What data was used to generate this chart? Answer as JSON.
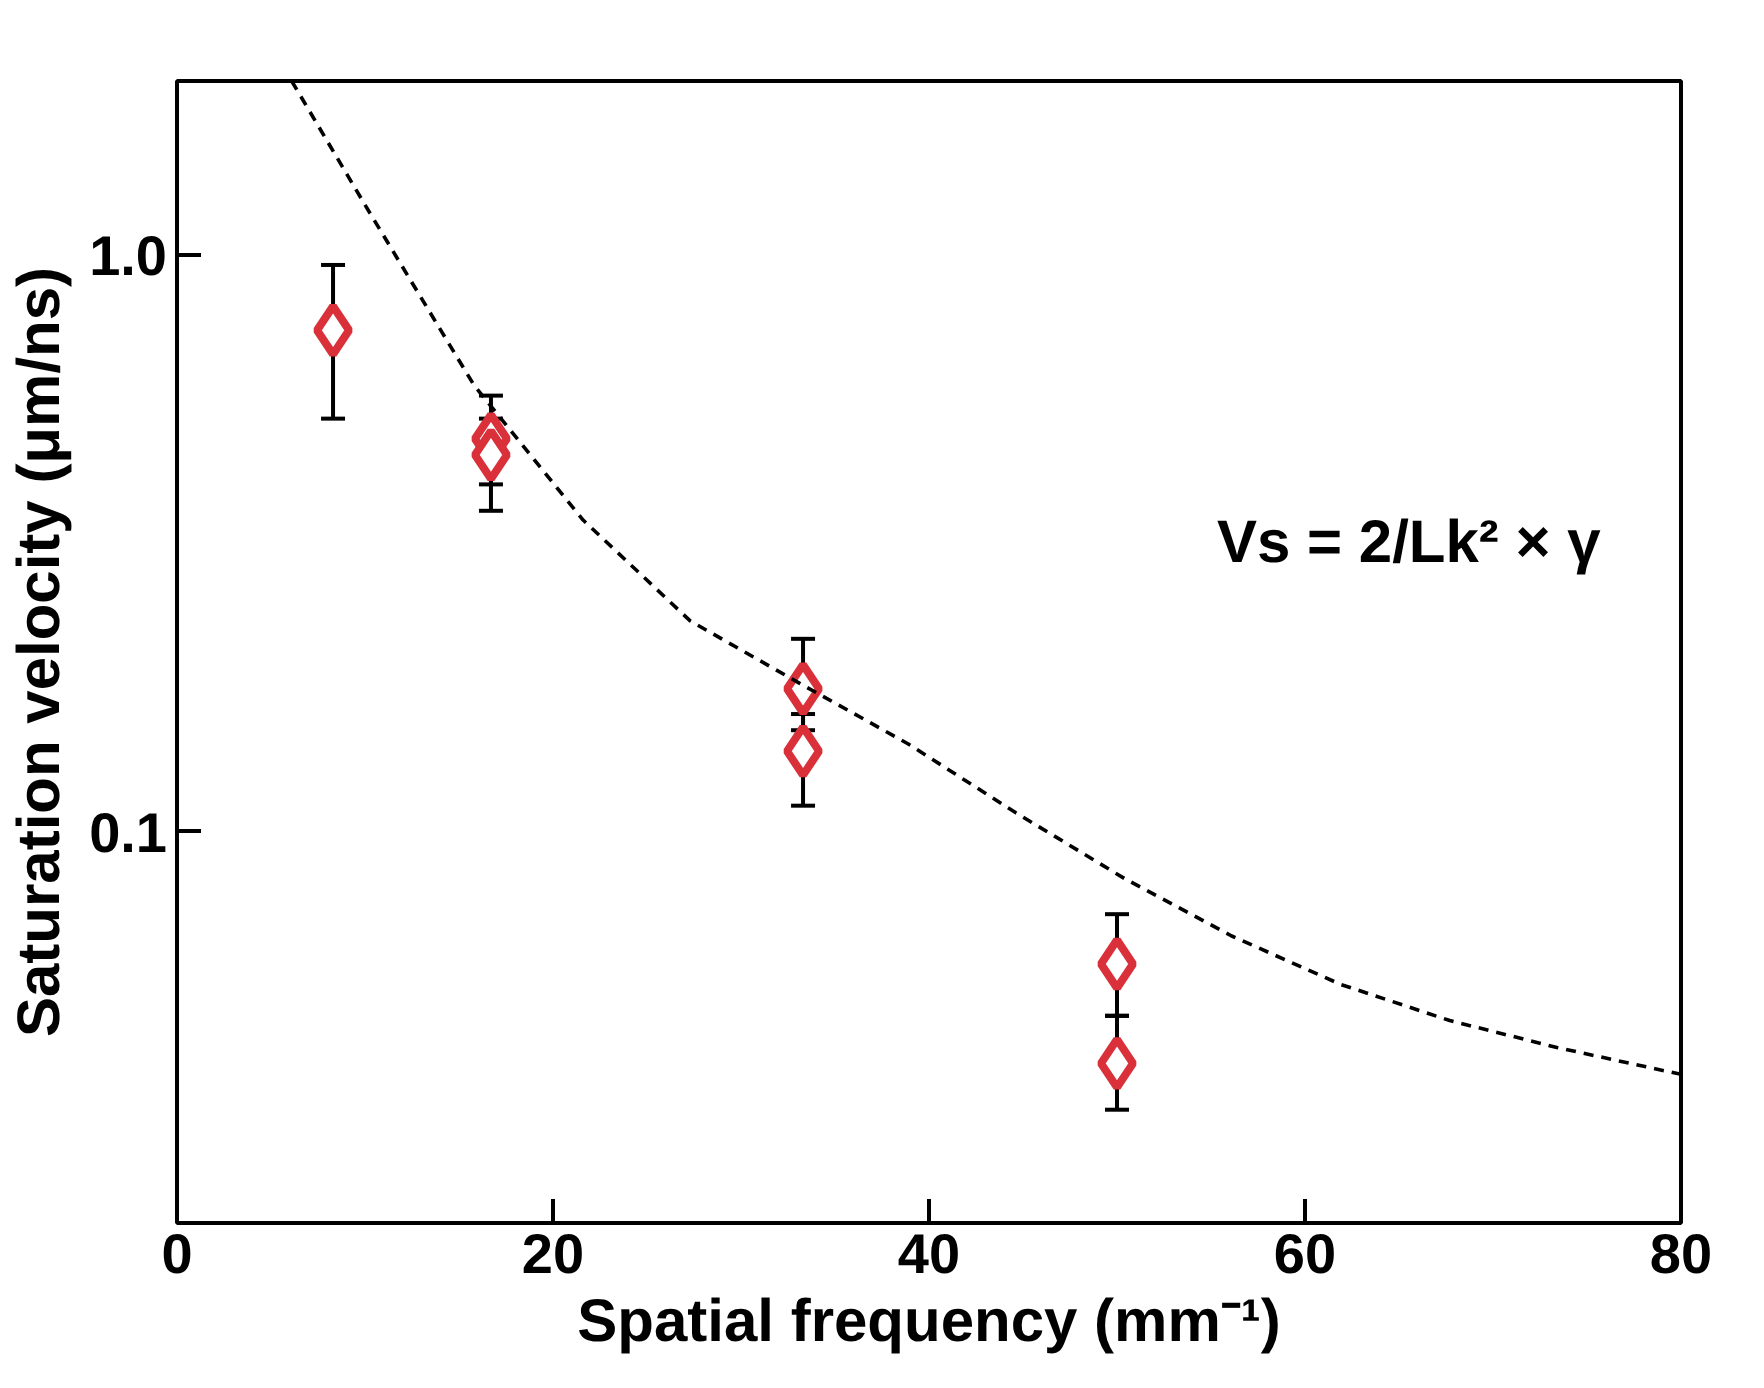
{
  "chart_data": {
    "type": "scatter",
    "xlabel": "Spatial frequency (mm⁻¹)",
    "ylabel": "Saturation velocity (μm/ns)",
    "log": "y",
    "xlim": [
      0,
      80
    ],
    "ylim": [
      0.021,
      2.0
    ],
    "xticks": [
      0,
      20,
      40,
      60,
      80
    ],
    "yticks": [
      {
        "value": 0.1,
        "label": "0.1"
      },
      {
        "value": 1,
        "label": "1.0"
      }
    ],
    "grid": false,
    "series": [
      {
        "marker": "diamond",
        "color": "#d9303a",
        "x": [
          8.3,
          16.7,
          16.7,
          33.3,
          33.3,
          50,
          50
        ],
        "values": [
          0.74,
          0.48,
          0.45,
          0.177,
          0.138,
          0.059,
          0.0397
        ],
        "errors": [
          [
            0.52,
            0.96
          ],
          [
            0.4,
            0.57
          ],
          [
            0.36,
            0.52
          ],
          [
            0.15,
            0.216
          ],
          [
            0.111,
            0.16
          ],
          [
            0.048,
            0.072
          ],
          [
            0.033,
            0.048
          ]
        ]
      },
      {
        "type": "line",
        "line_style": "dashed",
        "color": "#000000",
        "x": [
          6.1,
          10,
          15.8,
          21.6,
          27.3,
          33.1,
          38.9,
          44.6,
          50.4,
          56.1,
          61.9,
          67.7,
          73.4,
          80
        ],
        "values": [
          2.0,
          1.22,
          0.594,
          0.347,
          0.232,
          0.181,
          0.142,
          0.108,
          0.083,
          0.066,
          0.0544,
          0.0471,
          0.0423,
          0.038
        ]
      }
    ],
    "annotations": [
      "Vs = 2/Lk² × γ"
    ]
  }
}
